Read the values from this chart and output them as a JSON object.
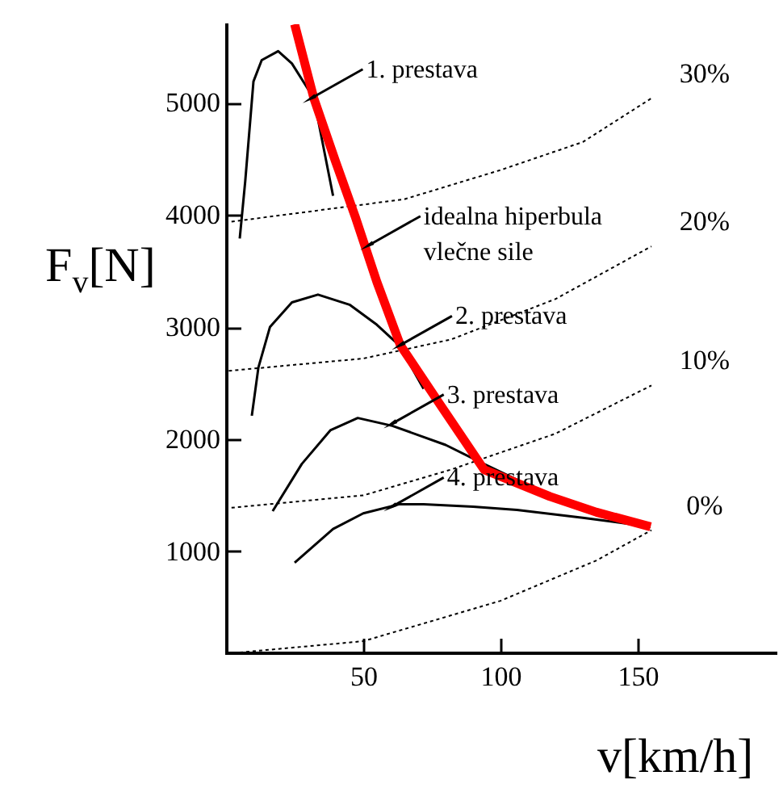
{
  "chart_data": {
    "type": "line",
    "xlabel": "v[km/h]",
    "ylabel": "F$_{v}$[N]",
    "xlim": [
      0,
      200
    ],
    "ylim": [
      100,
      5700
    ],
    "xticks": [
      50,
      100,
      150
    ],
    "yticks": [
      1000,
      2000,
      3000,
      4000,
      5000
    ],
    "grid": false,
    "marker": "none",
    "series": [
      {
        "color": "#000000",
        "line_style": "solid",
        "x": [
          5,
          7,
          10,
          13,
          19,
          24,
          32,
          39
        ],
        "values": [
          3790,
          4300,
          5190,
          5380,
          5460,
          5350,
          5040,
          4170
        ]
      },
      {
        "color": "#000000",
        "line_style": "solid",
        "x": [
          9.4,
          11.8,
          16,
          24,
          33.5,
          45,
          55,
          63,
          72
        ],
        "values": [
          2210,
          2640,
          3000,
          3220,
          3290,
          3200,
          3020,
          2840,
          2450
        ]
      },
      {
        "color": "#000000",
        "line_style": "solid",
        "x": [
          17,
          27.6,
          38,
          48,
          60.6,
          80,
          94,
          106
        ],
        "values": [
          1360,
          1780,
          2080,
          2190,
          2120,
          1950,
          1780,
          1640
        ]
      },
      {
        "color": "#000000",
        "line_style": "solid",
        "x": [
          25,
          39,
          50,
          63,
          72,
          90,
          106,
          130,
          154.7
        ],
        "values": [
          900,
          1200,
          1340,
          1420,
          1420,
          1400,
          1370,
          1300,
          1220
        ]
      },
      {
        "name": "30%",
        "color": "#000000",
        "line_style": "dotted",
        "x": [
          2,
          65,
          100,
          130,
          155
        ],
        "values": [
          3940,
          4140,
          4400,
          4650,
          5040
        ]
      },
      {
        "name": "20%",
        "color": "#000000",
        "line_style": "dotted",
        "x": [
          1,
          50,
          82,
          120,
          155
        ],
        "values": [
          2610,
          2720,
          2890,
          3250,
          3720
        ]
      },
      {
        "name": "10%",
        "color": "#000000",
        "line_style": "dotted",
        "x": [
          2,
          50,
          82,
          120,
          155
        ],
        "values": [
          1390,
          1500,
          1730,
          2050,
          2480
        ]
      },
      {
        "name": "0%",
        "color": "#000000",
        "line_style": "dotted",
        "x": [
          5,
          50,
          100,
          135,
          155
        ],
        "values": [
          100,
          200,
          560,
          920,
          1190
        ]
      },
      {
        "color": "#ff0000",
        "line_style": "solid",
        "x": [
          25,
          32,
          40,
          47,
          55,
          63.5,
          78,
          94,
          118,
          135,
          154.7
        ],
        "values": [
          5700,
          5040,
          4470,
          3990,
          3400,
          2840,
          2310,
          1730,
          1490,
          1350,
          1220
        ]
      }
    ],
    "annotations": [
      {
        "text": "1. prestava",
        "x": 31,
        "y": 5040
      },
      {
        "text": "idealna hiperbula\nvlečne sile",
        "x": 52,
        "y": 3730
      },
      {
        "text": "2. prestava",
        "x": 63.5,
        "y": 2840
      },
      {
        "text": "3. prestava",
        "x": 60.5,
        "y": 2140
      },
      {
        "text": "4. prestava",
        "x": 60.5,
        "y": 1400
      }
    ]
  }
}
